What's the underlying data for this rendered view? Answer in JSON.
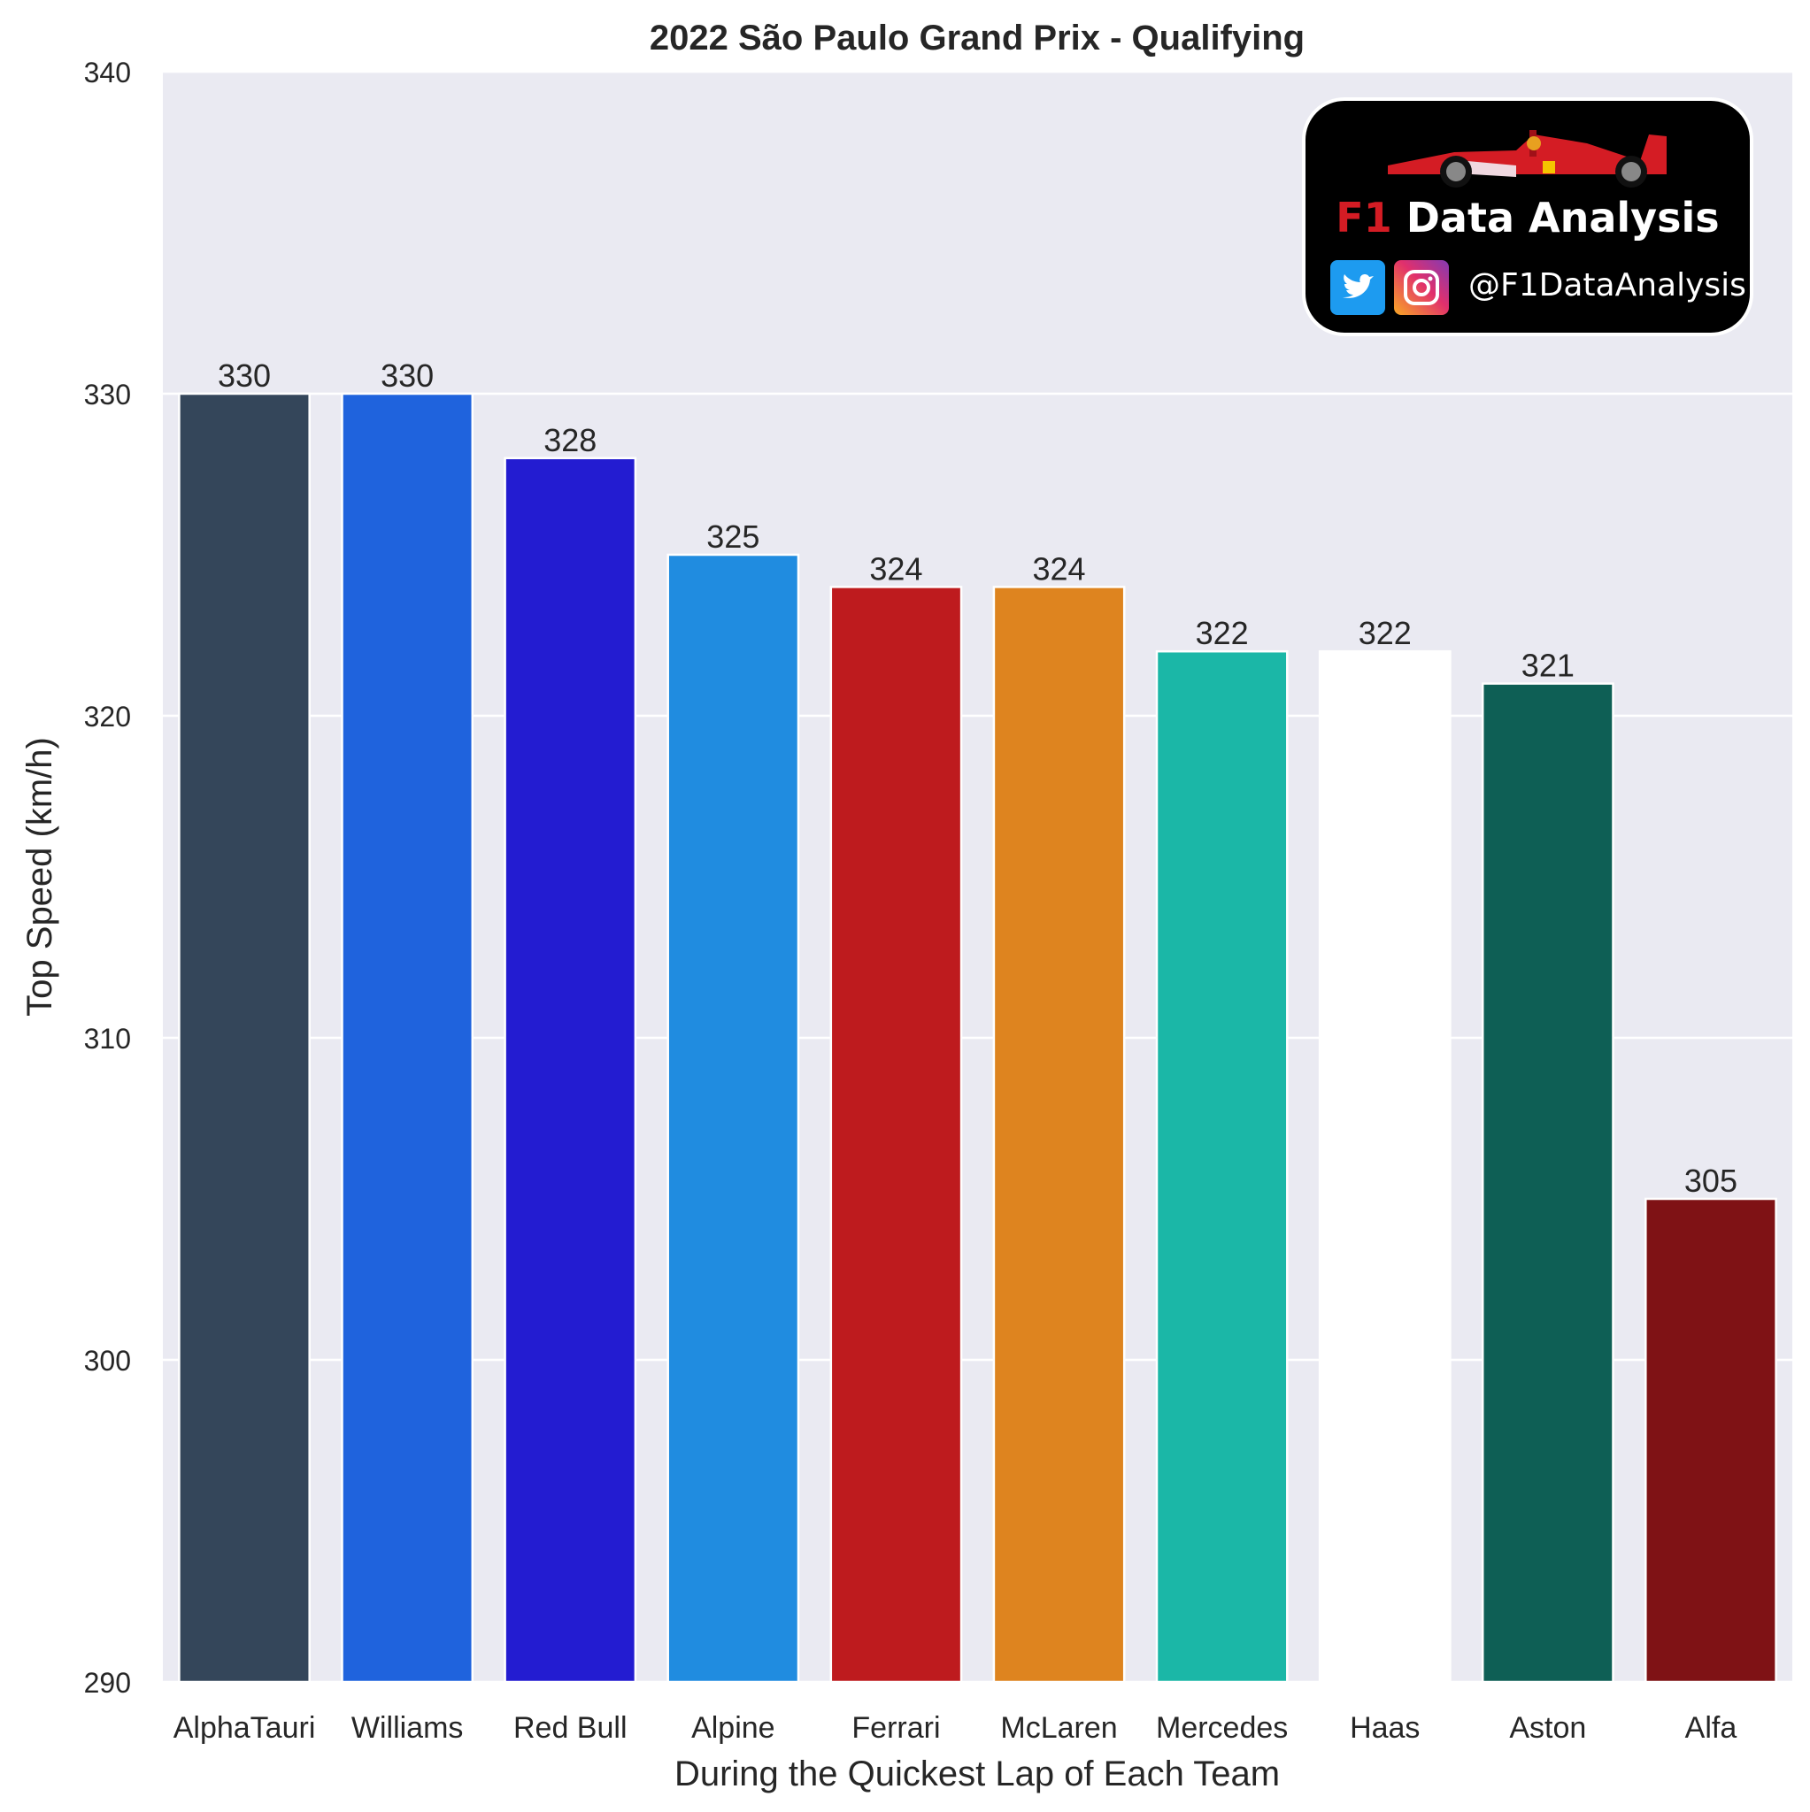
{
  "chart_data": {
    "type": "bar",
    "title": "2022 São Paulo Grand Prix - Qualifying",
    "xlabel": "During the Quickest Lap of Each Team",
    "ylabel": "Top Speed (km/h)",
    "ylim": [
      290,
      340
    ],
    "yticks": [
      290,
      300,
      310,
      320,
      330,
      340
    ],
    "grid": true,
    "categories": [
      "AlphaTauri",
      "Williams",
      "Red Bull",
      "Alpine",
      "Ferrari",
      "McLaren",
      "Mercedes",
      "Haas",
      "Aston",
      "Alfa"
    ],
    "values": [
      330,
      330,
      328,
      325,
      324,
      324,
      322,
      322,
      321,
      305
    ],
    "colors": [
      "#34465a",
      "#1f63dd",
      "#231cd1",
      "#208ce0",
      "#be1b1e",
      "#de841f",
      "#1bb7a7",
      "#ffffff",
      "#0e5f55",
      "#7f1215"
    ],
    "background": "#eaeaf2"
  },
  "logo": {
    "brand_prefix": "F1",
    "brand_rest": "Data Analysis",
    "handle": "@F1DataAnalysis",
    "icons": [
      "f1-car-icon",
      "twitter-icon",
      "instagram-icon"
    ]
  }
}
